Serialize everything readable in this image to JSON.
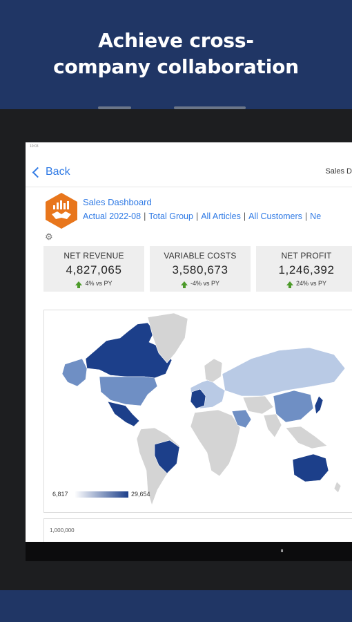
{
  "promo": {
    "headline_line1": "Achieve cross-",
    "headline_line2": "company collaboration"
  },
  "statusbar": {
    "time": "10:03"
  },
  "nav": {
    "back_label": "Back",
    "right_title": "Sales D"
  },
  "dashboard": {
    "title": "Sales Dashboard",
    "filters": [
      "Actual 2022-08",
      "Total Group",
      "All Articles",
      "All Customers",
      "Ne"
    ]
  },
  "kpis": [
    {
      "label": "NET REVENUE",
      "value": "4,827,065",
      "change": "4% vs PY"
    },
    {
      "label": "VARIABLE COSTS",
      "value": "3,580,673",
      "change": "-4% vs PY"
    },
    {
      "label": "NET PROFIT",
      "value": "1,246,392",
      "change": "24% vs PY"
    }
  ],
  "map": {
    "legend_min": "6,817",
    "legend_max": "29,654"
  },
  "chart": {
    "y_tick_top": "1,000,000"
  },
  "colors": {
    "accent": "#2f7ae5",
    "header_bg": "#203665",
    "logo": "#e8761c",
    "map_dark": "#1c3f8a",
    "map_mid": "#6f8fc4",
    "map_light": "#b9cae5",
    "map_gray": "#d4d4d4"
  }
}
